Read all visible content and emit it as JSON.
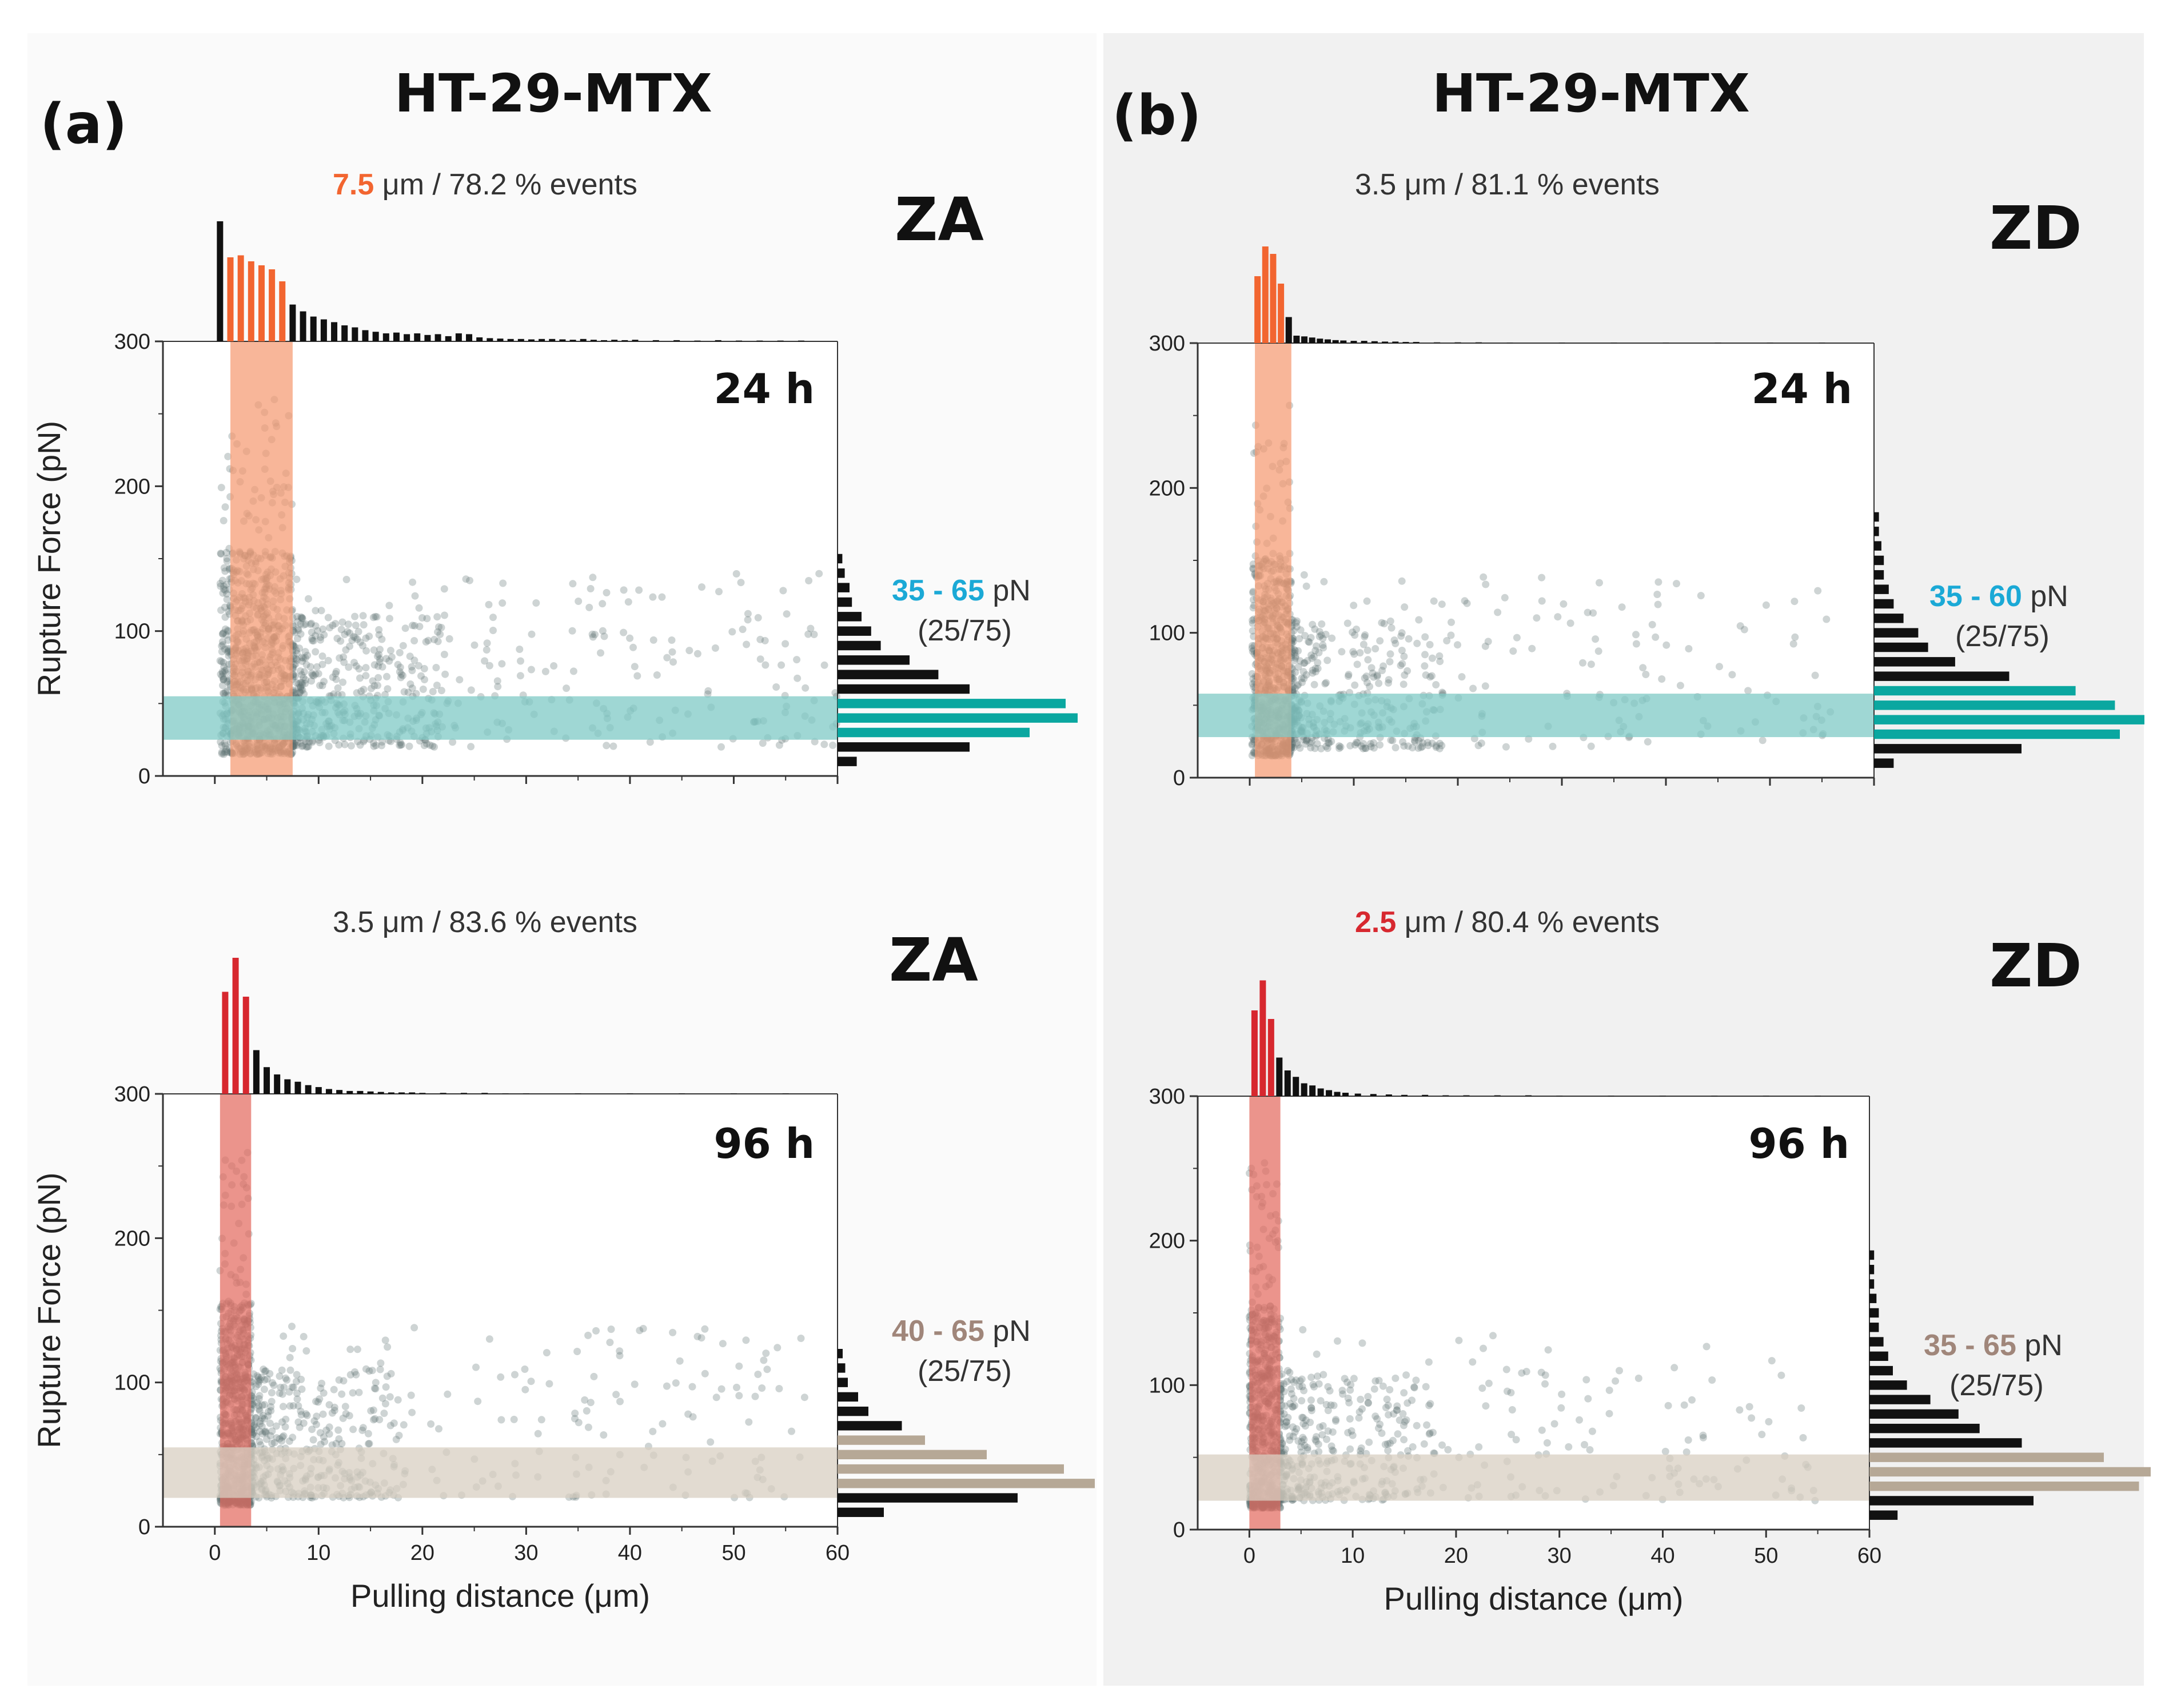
{
  "colors": {
    "orange": "#f26530",
    "red": "#d7282f",
    "teal": "#0aa7a0",
    "teal_band": "#7fcac6",
    "tan": "#b6a896",
    "tan_band": "#d8cfc2",
    "cyan_text": "#1ba9d6",
    "tan_text": "#a0867a",
    "orange_band": "#f59a72",
    "red_band": "#e36b5f",
    "scatter": "#5c6f72",
    "black": "#111111"
  },
  "panels": [
    {
      "letter": "(a)",
      "title": "HT-29-MTX",
      "zone_label_top": "ZA",
      "zone_label_bottom": "ZA"
    },
    {
      "letter": "(b)",
      "title": "HT-29-MTX",
      "zone_label_top": "ZD",
      "zone_label_bottom": "ZD"
    }
  ],
  "chart_data": [
    {
      "id": "a-24h",
      "type": "scatter",
      "time_label": "24 h",
      "events_value": "7.5",
      "events_rest": " μm / 78.2 % events",
      "events_value_color": "orange",
      "range_value": "35 - 65",
      "range_unit": " pN",
      "range_note": "(25/75)",
      "range_color": "cyan_text",
      "ylabel": "Rupture Force (pN)",
      "xlabel": "",
      "xlim": [
        -5,
        60
      ],
      "ylim": [
        0,
        300
      ],
      "yticks": [
        0,
        100,
        200,
        300
      ],
      "xticks": [
        0,
        10,
        20,
        30,
        40,
        50,
        60
      ],
      "show_x_tick_labels": false,
      "distance_band": [
        1.5,
        7.5
      ],
      "distance_band_color": "orange_band",
      "force_band": [
        25,
        55
      ],
      "force_band_color": "teal_band",
      "top_hist_x": [
        0.5,
        1.5,
        2.5,
        3.5,
        4.5,
        5.5,
        6.5,
        7.5,
        8.5,
        9.5,
        10.5,
        11.5,
        12.5,
        13.5,
        14.5,
        15.5,
        16.5,
        17.5,
        18.5,
        19.5,
        20.5,
        21.5,
        22.5,
        23.5,
        24.5,
        25.5,
        26.5,
        27.5,
        28.5,
        29.5,
        30.5,
        31.5,
        32.5,
        33.5,
        34.5,
        35.5,
        36.5,
        37.5,
        38.5,
        39.5,
        40.5,
        42.5,
        44.5,
        46.5,
        48.5,
        50.5,
        52.5,
        54.5,
        56.5
      ],
      "top_hist_y": [
        300,
        210,
        215,
        200,
        190,
        180,
        150,
        92,
        75,
        62,
        55,
        48,
        40,
        35,
        28,
        24,
        20,
        22,
        18,
        20,
        16,
        18,
        13,
        20,
        18,
        10,
        8,
        7,
        6,
        6,
        5,
        6,
        6,
        5,
        4,
        6,
        4,
        3,
        4,
        3,
        4,
        3,
        3,
        2,
        3,
        2,
        2,
        2,
        2
      ],
      "top_hist_highlight": [
        1,
        2,
        3,
        4,
        5,
        6
      ],
      "top_hist_highlight_color": "orange",
      "side_hist_y": [
        10,
        20,
        30,
        40,
        50,
        60,
        70,
        80,
        90,
        100,
        110,
        120,
        130,
        140,
        150
      ],
      "side_hist_x": [
        8,
        55,
        80,
        100,
        95,
        55,
        42,
        30,
        18,
        14,
        10,
        6,
        5,
        3,
        2
      ],
      "side_hist_highlight": [
        2,
        3,
        4
      ],
      "side_hist_highlight_color": "teal",
      "seed": 11,
      "n_points": 1400,
      "cluster_x": [
        0.5,
        7.5
      ],
      "spread_x": 60
    },
    {
      "id": "a-96h",
      "type": "scatter",
      "time_label": "96 h",
      "events_value": "",
      "events_rest": "3.5 μm / 83.6 % events",
      "events_value_color": "black",
      "range_value": "40 - 65",
      "range_unit": " pN",
      "range_note": "(25/75)",
      "range_color": "tan_text",
      "ylabel": "Rupture Force (pN)",
      "xlabel": "Pulling distance (μm)",
      "xlim": [
        -5,
        60
      ],
      "ylim": [
        0,
        300
      ],
      "yticks": [
        0,
        100,
        200,
        300
      ],
      "xticks": [
        0,
        10,
        20,
        30,
        40,
        50,
        60
      ],
      "show_x_tick_labels": true,
      "distance_band": [
        0.5,
        3.5
      ],
      "distance_band_color": "red_band",
      "force_band": [
        20,
        55
      ],
      "force_band_color": "tan_band",
      "top_hist_x": [
        1,
        2,
        3,
        4,
        5,
        6,
        7,
        8,
        9,
        10,
        11,
        12,
        13,
        14,
        15,
        16,
        17,
        18,
        19,
        20,
        22,
        24,
        26,
        28,
        30,
        35,
        40,
        45,
        50,
        55
      ],
      "top_hist_y": [
        210,
        280,
        200,
        90,
        55,
        40,
        30,
        25,
        18,
        14,
        10,
        8,
        6,
        6,
        5,
        4,
        3,
        3,
        3,
        2,
        2,
        2,
        2,
        1,
        1,
        1,
        1,
        1,
        1,
        1
      ],
      "top_hist_highlight": [
        0,
        1,
        2
      ],
      "top_hist_highlight_color": "red",
      "side_hist_y": [
        10,
        20,
        30,
        40,
        50,
        60,
        70,
        80,
        90,
        100,
        110,
        120
      ],
      "side_hist_x": [
        18,
        70,
        100,
        88,
        58,
        34,
        25,
        12,
        8,
        4,
        3,
        2
      ],
      "side_hist_highlight": [
        2,
        3,
        4,
        5
      ],
      "side_hist_highlight_color": "tan",
      "seed": 23,
      "n_points": 1200,
      "cluster_x": [
        0.5,
        3.5
      ],
      "spread_x": 57
    },
    {
      "id": "b-24h",
      "type": "scatter",
      "time_label": "24 h",
      "events_value": "",
      "events_rest": "3.5 μm / 81.1 % events",
      "events_value_color": "black",
      "range_value": "35 - 60",
      "range_unit": " pN",
      "range_note": "(25/75)",
      "range_color": "cyan_text",
      "ylabel": "",
      "xlabel": "",
      "xlim": [
        -5,
        60
      ],
      "ylim": [
        0,
        300
      ],
      "yticks": [
        0,
        100,
        200,
        300
      ],
      "xticks": [
        0,
        10,
        20,
        30,
        40,
        50,
        60
      ],
      "show_x_tick_labels": false,
      "distance_band": [
        0.5,
        4
      ],
      "distance_band_color": "orange_band",
      "force_band": [
        28,
        58
      ],
      "force_band_color": "teal_band",
      "top_hist_x": [
        0.75,
        1.5,
        2.25,
        3,
        3.75,
        4.5,
        5.25,
        6,
        6.75,
        7.5,
        8.25,
        9,
        10,
        11,
        12,
        13,
        14,
        15,
        16,
        18,
        20,
        22,
        25,
        30,
        35,
        40,
        45,
        50,
        55
      ],
      "top_hist_y": [
        180,
        260,
        240,
        160,
        70,
        20,
        18,
        15,
        12,
        10,
        8,
        7,
        6,
        6,
        5,
        4,
        4,
        3,
        3,
        2,
        2,
        2,
        1,
        1,
        1,
        1,
        1,
        1,
        1
      ],
      "top_hist_highlight": [
        0,
        1,
        2,
        3
      ],
      "top_hist_highlight_color": "orange",
      "side_hist_y": [
        10,
        20,
        30,
        40,
        50,
        60,
        70,
        80,
        90,
        100,
        110,
        120,
        130,
        140,
        150,
        160,
        170,
        180
      ],
      "side_hist_x": [
        8,
        60,
        100,
        110,
        98,
        82,
        55,
        33,
        22,
        18,
        12,
        8,
        6,
        4,
        4,
        3,
        2,
        2
      ],
      "side_hist_highlight": [
        2,
        3,
        4,
        5
      ],
      "side_hist_highlight_color": "teal",
      "seed": 37,
      "n_points": 1100,
      "cluster_x": [
        0.2,
        4
      ],
      "spread_x": 56
    },
    {
      "id": "b-96h",
      "type": "scatter",
      "time_label": "96 h",
      "events_value": "2.5",
      "events_rest": " μm / 80.4 % events",
      "events_value_color": "red",
      "range_value": "35 - 65",
      "range_unit": " pN",
      "range_note": "(25/75)",
      "range_color": "tan_text",
      "ylabel": "",
      "xlabel": "Pulling distance (μm)",
      "xlim": [
        -5,
        60
      ],
      "ylim": [
        0,
        300
      ],
      "yticks": [
        0,
        100,
        200,
        300
      ],
      "xticks": [
        0,
        10,
        20,
        30,
        40,
        50,
        60
      ],
      "show_x_tick_labels": true,
      "distance_band": [
        0,
        3
      ],
      "distance_band_color": "red_band",
      "force_band": [
        20,
        52
      ],
      "force_band_color": "tan_band",
      "top_hist_x": [
        0.5,
        1.3,
        2.1,
        2.9,
        3.7,
        4.5,
        5.3,
        6.1,
        6.9,
        7.7,
        8.5,
        9.3,
        10.5,
        12,
        13.5,
        15,
        17,
        19,
        21,
        24,
        27,
        30,
        35,
        40,
        45,
        50,
        55
      ],
      "top_hist_y": [
        200,
        270,
        180,
        90,
        60,
        45,
        30,
        25,
        18,
        14,
        10,
        8,
        6,
        5,
        4,
        3,
        3,
        2,
        2,
        2,
        2,
        1,
        1,
        1,
        1,
        1,
        1
      ],
      "top_hist_highlight": [
        0,
        1,
        2
      ],
      "top_hist_highlight_color": "red",
      "side_hist_y": [
        10,
        20,
        30,
        40,
        50,
        60,
        70,
        80,
        90,
        100,
        110,
        120,
        130,
        140,
        150,
        160,
        170,
        180,
        190
      ],
      "side_hist_x": [
        12,
        70,
        115,
        120,
        100,
        65,
        47,
        38,
        26,
        16,
        10,
        8,
        6,
        4,
        4,
        3,
        2,
        2,
        2
      ],
      "side_hist_highlight": [
        2,
        3,
        4
      ],
      "side_hist_highlight_color": "tan",
      "seed": 59,
      "n_points": 1100,
      "cluster_x": [
        0,
        3
      ],
      "spread_x": 55
    }
  ]
}
